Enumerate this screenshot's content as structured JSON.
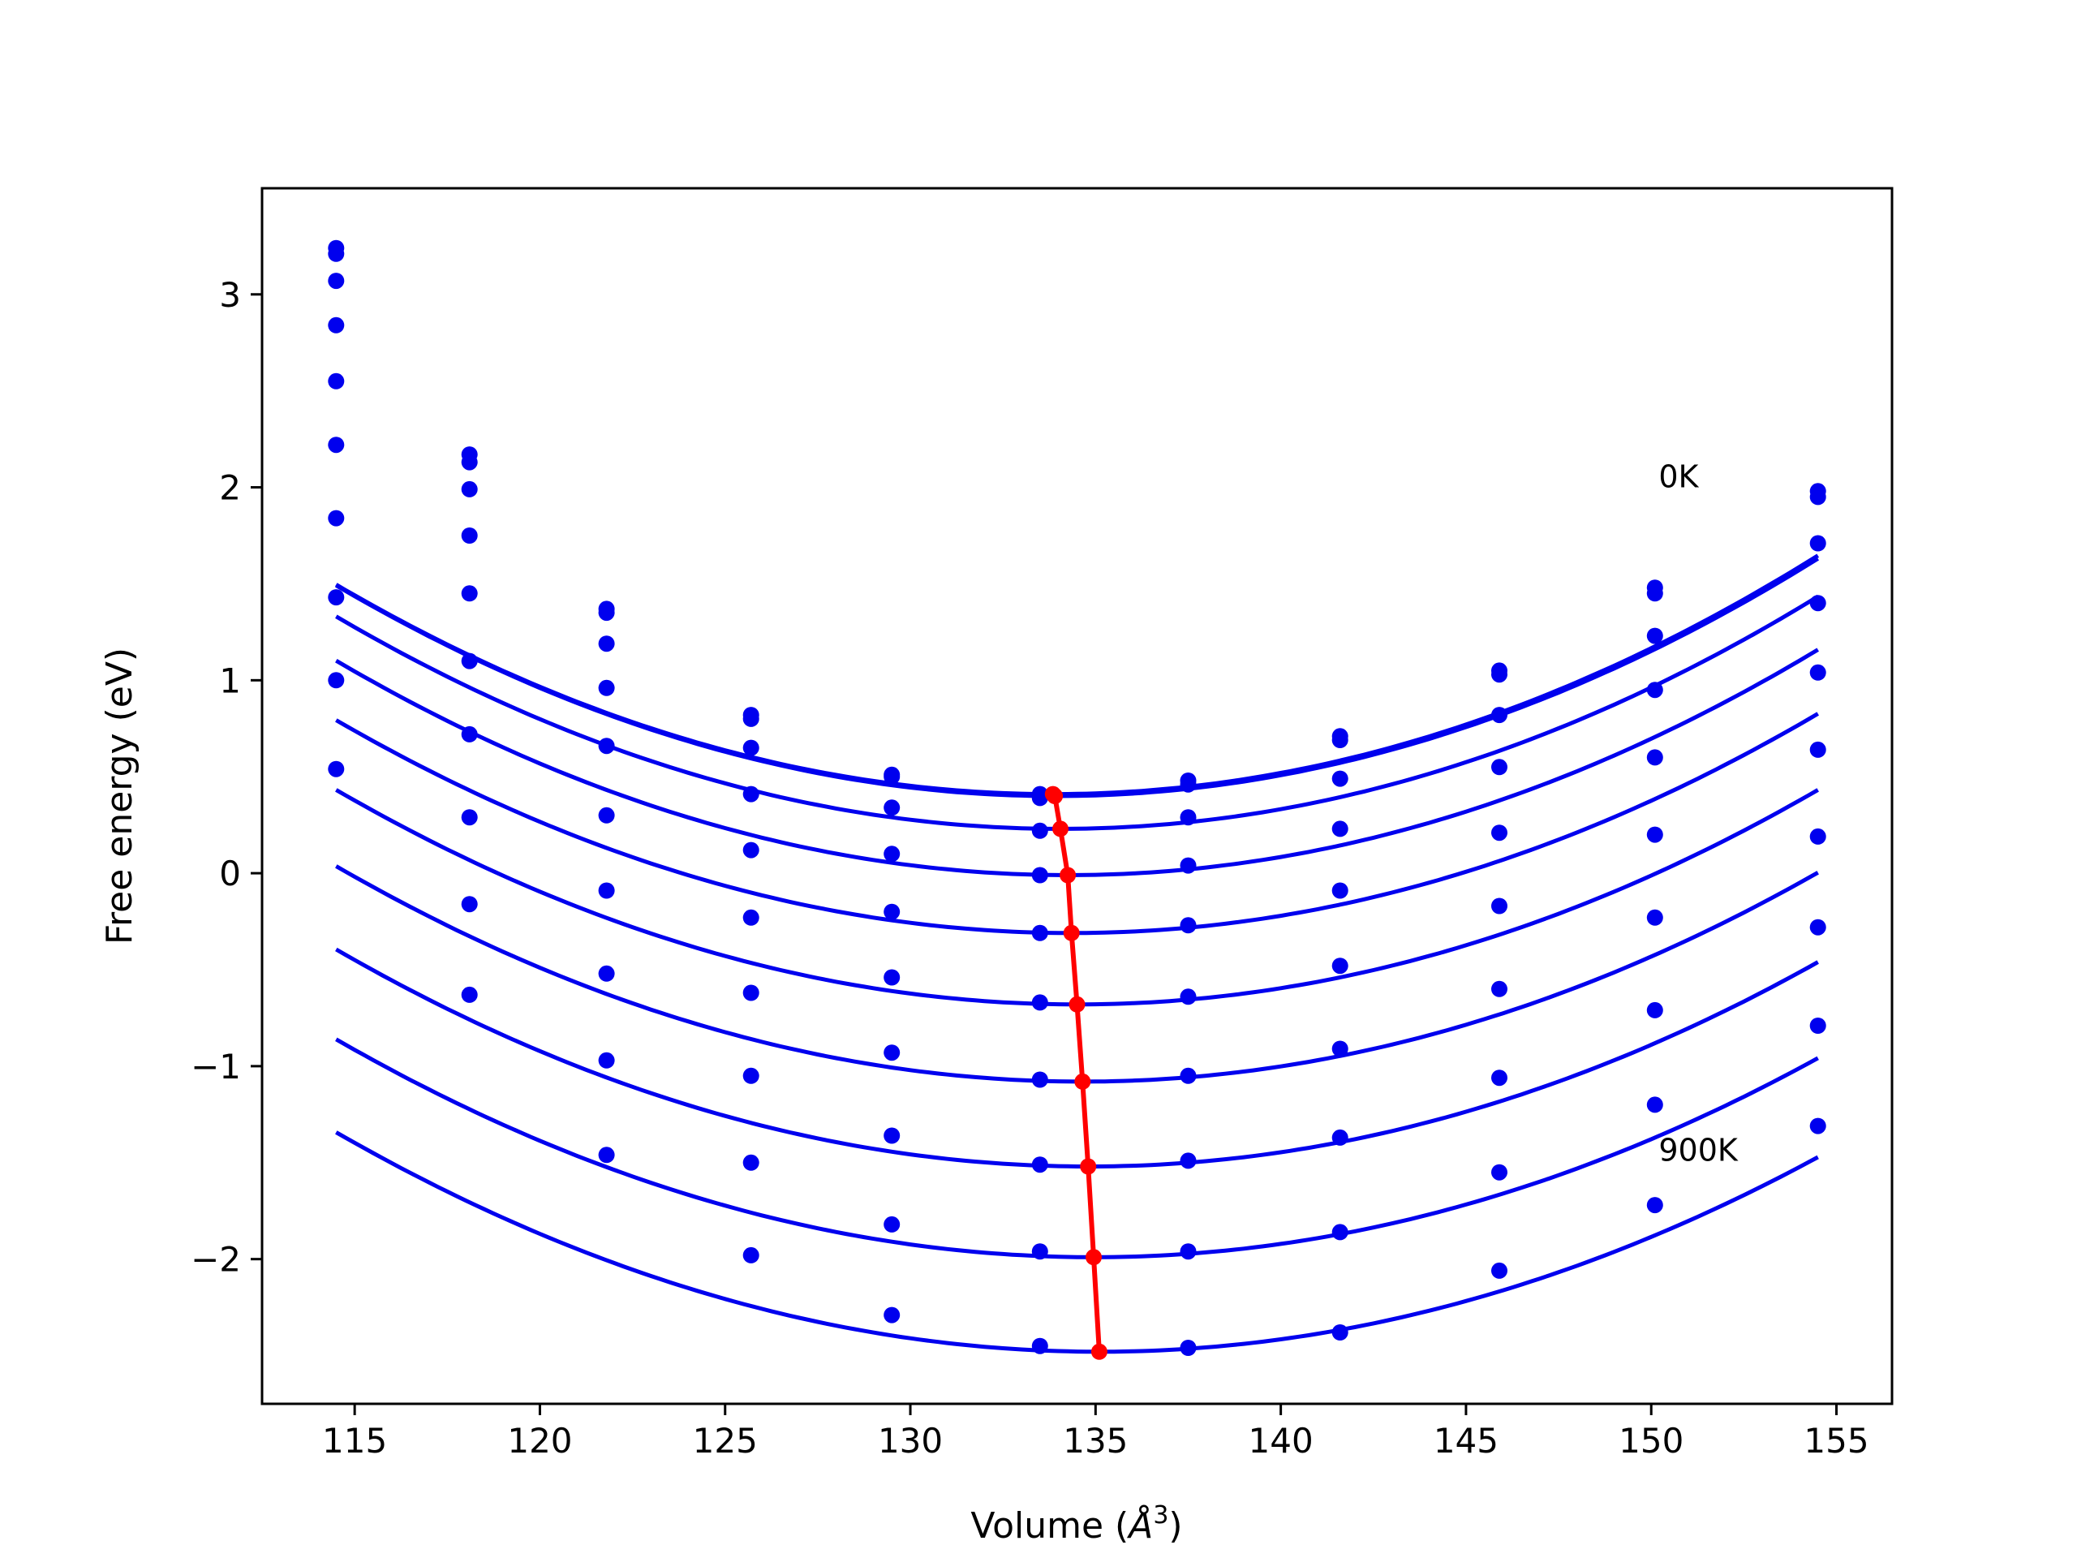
{
  "chart_data": {
    "type": "line",
    "title": "",
    "xlabel_text": "Volume (",
    "xlabel_symbol": "Å",
    "xlabel_superscript": "3",
    "xlabel_close": ")",
    "ylabel": "Free energy (eV)",
    "xlim": [
      112.5,
      156.5
    ],
    "ylim": [
      -2.75,
      3.55
    ],
    "xticks": [
      115,
      120,
      125,
      130,
      135,
      140,
      145,
      150,
      155
    ],
    "xtick_labels": [
      "115",
      "120",
      "125",
      "130",
      "135",
      "140",
      "145",
      "150",
      "155"
    ],
    "yticks": [
      -2,
      -1,
      0,
      1,
      2,
      3
    ],
    "ytick_labels": [
      "−2",
      "−1",
      "0",
      "1",
      "2",
      "3"
    ],
    "grid": false,
    "annotations": [
      {
        "text": "0K",
        "x": 150.2,
        "y": 2.0
      },
      {
        "text": "900K",
        "x": 150.2,
        "y": -1.49
      }
    ],
    "colors": {
      "isotherm": "#0000ee",
      "minimum_path": "#ff0000",
      "axes": "#000000"
    },
    "x": [
      114.5,
      118.1,
      121.8,
      125.7,
      129.5,
      133.5,
      137.5,
      141.6,
      145.9,
      150.1,
      154.5
    ],
    "series": [
      {
        "values": [
          3.24,
          2.17,
          1.37,
          0.82,
          0.51,
          0.41,
          0.48,
          0.71,
          1.05,
          1.48,
          1.98
        ],
        "fit": [
          0.0029,
          133.85,
          0.41
        ],
        "min": [
          133.85,
          0.41
        ]
      },
      {
        "values": [
          3.21,
          2.13,
          1.35,
          0.8,
          0.5,
          0.39,
          0.46,
          0.69,
          1.03,
          1.45,
          1.95
        ],
        "fit": [
          0.0029,
          133.9,
          0.4
        ],
        "min": [
          133.9,
          0.4
        ]
      },
      {
        "values": [
          3.07,
          1.99,
          1.19,
          0.65,
          0.34,
          0.22,
          0.29,
          0.49,
          0.82,
          1.23,
          1.71
        ],
        "fit": [
          0.00288,
          134.05,
          0.23
        ],
        "min": [
          134.05,
          0.23
        ]
      },
      {
        "values": [
          2.84,
          1.75,
          0.96,
          0.41,
          0.1,
          -0.01,
          0.04,
          0.23,
          0.55,
          0.95,
          1.4
        ],
        "fit": [
          0.00285,
          134.25,
          -0.01
        ],
        "min": [
          134.25,
          -0.01
        ]
      },
      {
        "values": [
          2.55,
          1.45,
          0.66,
          0.12,
          -0.2,
          -0.31,
          -0.27,
          -0.09,
          0.21,
          0.6,
          1.04
        ],
        "fit": [
          0.0028,
          134.35,
          -0.31
        ],
        "min": [
          134.35,
          -0.31
        ]
      },
      {
        "values": [
          2.22,
          1.1,
          0.3,
          -0.23,
          -0.54,
          -0.67,
          -0.64,
          -0.48,
          -0.17,
          0.2,
          0.64
        ],
        "fit": [
          0.00278,
          134.5,
          -0.68
        ],
        "min": [
          134.5,
          -0.68
        ]
      },
      {
        "values": [
          1.84,
          0.72,
          -0.09,
          -0.62,
          -0.93,
          -1.07,
          -1.05,
          -0.91,
          -0.6,
          -0.23,
          0.19
        ],
        "fit": [
          0.00275,
          134.65,
          -1.08
        ],
        "min": [
          134.65,
          -1.08
        ]
      },
      {
        "values": [
          1.43,
          0.29,
          -0.52,
          -1.05,
          -1.36,
          -1.51,
          -1.49,
          -1.37,
          -1.06,
          -0.71,
          -0.28
        ],
        "fit": [
          0.00273,
          134.8,
          -1.52
        ],
        "min": [
          134.8,
          -1.52
        ]
      },
      {
        "values": [
          1.0,
          -0.16,
          -0.97,
          -1.5,
          -1.82,
          -1.96,
          -1.96,
          -1.86,
          -1.55,
          -1.2,
          -0.79
        ],
        "fit": [
          0.0027,
          134.95,
          -1.99
        ],
        "min": [
          134.95,
          -1.99
        ]
      },
      {
        "values": [
          0.54,
          -0.63,
          -1.46,
          -1.98,
          -2.29,
          -2.45,
          -2.46,
          -2.38,
          -2.06,
          -1.72,
          -1.31
        ],
        "fit": [
          0.00268,
          135.1,
          -2.48
        ],
        "min": [
          135.1,
          -2.48
        ]
      }
    ]
  }
}
